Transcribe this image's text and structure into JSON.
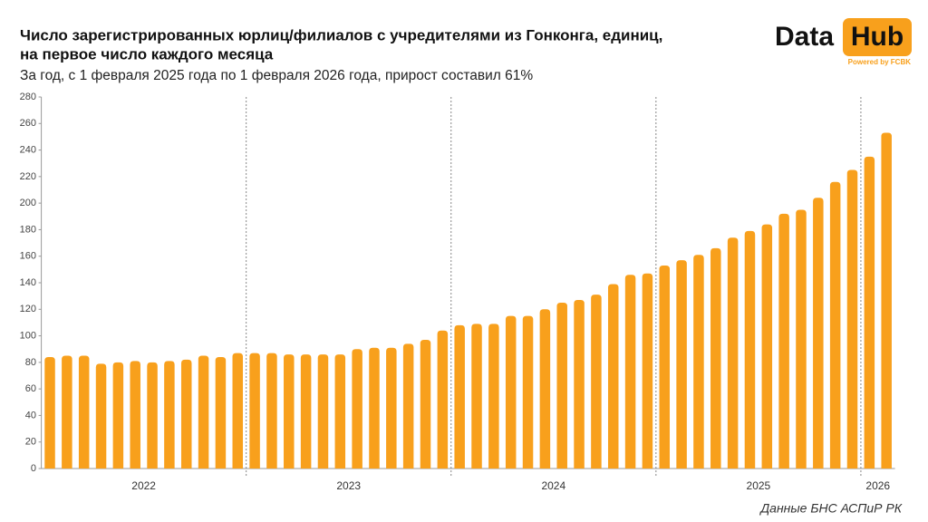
{
  "chart_data": {
    "type": "bar",
    "title": [
      "Число зарегистрированных юрлиц/филиалов с учредителями из Гонконга, единиц,",
      "на первое число каждого месяца"
    ],
    "subtitle": "За год, с 1 февраля 2025 года по 1 февраля 2026 года, прирост составил 61%",
    "source": "Данные БНС АСПиР РК",
    "logo": {
      "left": "Data",
      "right": "Hub",
      "tagline": "Powered by FCBK"
    },
    "categories": [
      "2022",
      "2022",
      "2022",
      "2022",
      "2022",
      "2022",
      "2022",
      "2022",
      "2022",
      "2022",
      "2022",
      "2022",
      "2023",
      "2023",
      "2023",
      "2023",
      "2023",
      "2023",
      "2023",
      "2023",
      "2023",
      "2023",
      "2023",
      "2023",
      "2024",
      "2024",
      "2024",
      "2024",
      "2024",
      "2024",
      "2024",
      "2024",
      "2024",
      "2024",
      "2024",
      "2024",
      "2025",
      "2025",
      "2025",
      "2025",
      "2025",
      "2025",
      "2025",
      "2025",
      "2025",
      "2025",
      "2025",
      "2025",
      "2026",
      "2026"
    ],
    "values": [
      84,
      85,
      85,
      79,
      80,
      81,
      80,
      81,
      82,
      85,
      84,
      87,
      87,
      87,
      86,
      86,
      86,
      86,
      90,
      91,
      91,
      94,
      97,
      104,
      108,
      109,
      109,
      115,
      115,
      120,
      125,
      127,
      131,
      139,
      146,
      147,
      153,
      157,
      161,
      166,
      174,
      179,
      184,
      192,
      195,
      204,
      216,
      225,
      235,
      253
    ],
    "color": "#F8A01C",
    "ylim": [
      0,
      280
    ],
    "yticks": [
      0,
      20,
      40,
      60,
      80,
      100,
      120,
      140,
      160,
      180,
      200,
      220,
      240,
      260,
      280
    ],
    "grid": false
  }
}
